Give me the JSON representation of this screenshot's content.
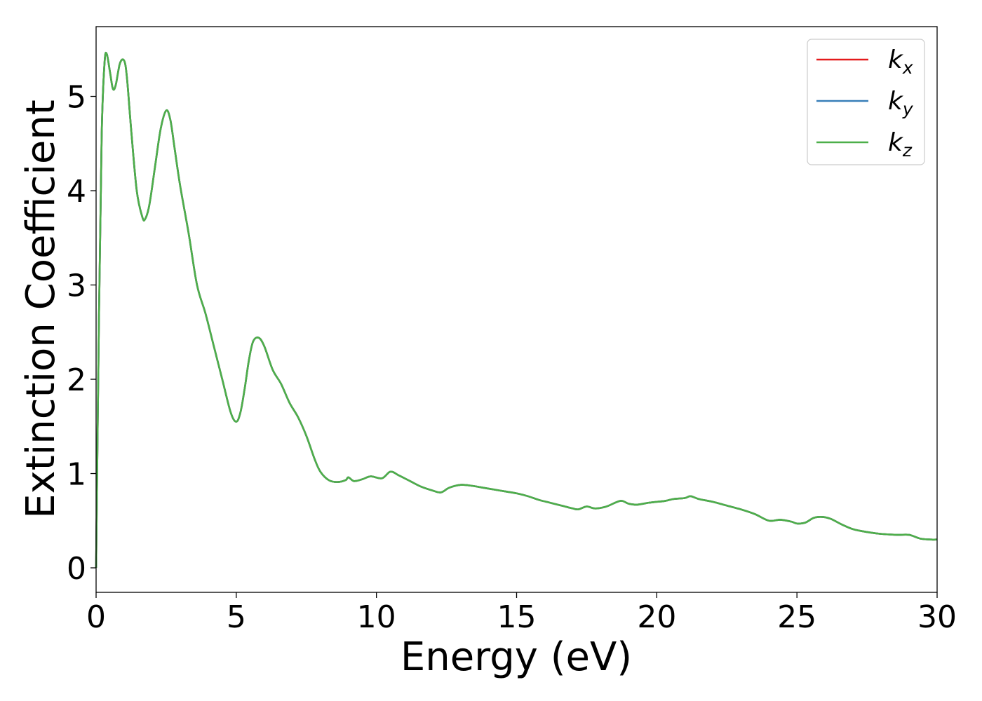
{
  "chart_data": {
    "type": "line",
    "xlabel": "Energy (eV)",
    "ylabel": "Extinction Coefficient",
    "xlim": [
      0,
      30
    ],
    "ylim": [
      -0.26,
      5.74
    ],
    "xticks": [
      0,
      5,
      10,
      15,
      20,
      25,
      30
    ],
    "yticks": [
      0,
      1,
      2,
      3,
      4,
      5
    ],
    "grid": false,
    "legend_position": "top-right",
    "x": [
      0.0,
      0.1,
      0.2,
      0.3,
      0.38,
      0.5,
      0.6,
      0.7,
      0.85,
      1.0,
      1.1,
      1.25,
      1.45,
      1.65,
      1.75,
      1.9,
      2.1,
      2.3,
      2.5,
      2.65,
      2.8,
      3.0,
      3.3,
      3.6,
      3.9,
      4.2,
      4.5,
      4.8,
      5.0,
      5.15,
      5.3,
      5.45,
      5.6,
      5.8,
      6.0,
      6.3,
      6.6,
      6.9,
      7.2,
      7.5,
      7.8,
      8.0,
      8.3,
      8.6,
      8.9,
      9.0,
      9.2,
      9.5,
      9.8,
      10.2,
      10.5,
      10.8,
      11.2,
      11.6,
      12.0,
      12.3,
      12.6,
      13.0,
      13.4,
      13.8,
      14.2,
      14.6,
      15.0,
      15.4,
      15.8,
      16.2,
      16.6,
      17.0,
      17.2,
      17.5,
      17.8,
      18.2,
      18.7,
      19.0,
      19.3,
      19.7,
      20.0,
      20.3,
      20.6,
      21.0,
      21.2,
      21.5,
      22.0,
      22.5,
      23.0,
      23.5,
      24.0,
      24.4,
      24.8,
      25.0,
      25.3,
      25.6,
      25.9,
      26.2,
      26.6,
      27.0,
      27.5,
      28.0,
      28.6,
      29.0,
      29.4,
      29.8,
      30.0
    ],
    "series": [
      {
        "name": "k_x",
        "label_main": "k",
        "label_sub": "x",
        "color": "#e41a1c",
        "values": [
          0.0,
          2.6,
          4.6,
          5.35,
          5.45,
          5.25,
          5.08,
          5.12,
          5.35,
          5.38,
          5.2,
          4.65,
          4.0,
          3.72,
          3.7,
          3.85,
          4.25,
          4.65,
          4.85,
          4.75,
          4.45,
          4.05,
          3.55,
          3.0,
          2.7,
          2.35,
          2.0,
          1.65,
          1.55,
          1.65,
          1.9,
          2.2,
          2.4,
          2.44,
          2.35,
          2.1,
          1.95,
          1.75,
          1.6,
          1.4,
          1.15,
          1.02,
          0.93,
          0.91,
          0.93,
          0.96,
          0.92,
          0.94,
          0.97,
          0.95,
          1.02,
          0.98,
          0.92,
          0.86,
          0.82,
          0.8,
          0.85,
          0.88,
          0.87,
          0.85,
          0.83,
          0.81,
          0.79,
          0.76,
          0.72,
          0.69,
          0.66,
          0.63,
          0.62,
          0.65,
          0.63,
          0.65,
          0.71,
          0.68,
          0.67,
          0.69,
          0.7,
          0.71,
          0.73,
          0.74,
          0.76,
          0.73,
          0.7,
          0.66,
          0.62,
          0.57,
          0.5,
          0.51,
          0.49,
          0.47,
          0.48,
          0.53,
          0.54,
          0.52,
          0.46,
          0.41,
          0.38,
          0.36,
          0.35,
          0.35,
          0.31,
          0.3,
          0.3
        ]
      },
      {
        "name": "k_y",
        "label_main": "k",
        "label_sub": "y",
        "color": "#377eb8",
        "values": [
          0.0,
          2.6,
          4.6,
          5.35,
          5.45,
          5.25,
          5.08,
          5.12,
          5.35,
          5.38,
          5.2,
          4.65,
          4.0,
          3.72,
          3.7,
          3.85,
          4.25,
          4.65,
          4.85,
          4.75,
          4.45,
          4.05,
          3.55,
          3.0,
          2.7,
          2.35,
          2.0,
          1.65,
          1.55,
          1.65,
          1.9,
          2.2,
          2.4,
          2.44,
          2.35,
          2.1,
          1.95,
          1.75,
          1.6,
          1.4,
          1.15,
          1.02,
          0.93,
          0.91,
          0.93,
          0.96,
          0.92,
          0.94,
          0.97,
          0.95,
          1.02,
          0.98,
          0.92,
          0.86,
          0.82,
          0.8,
          0.85,
          0.88,
          0.87,
          0.85,
          0.83,
          0.81,
          0.79,
          0.76,
          0.72,
          0.69,
          0.66,
          0.63,
          0.62,
          0.65,
          0.63,
          0.65,
          0.71,
          0.68,
          0.67,
          0.69,
          0.7,
          0.71,
          0.73,
          0.74,
          0.76,
          0.73,
          0.7,
          0.66,
          0.62,
          0.57,
          0.5,
          0.51,
          0.49,
          0.47,
          0.48,
          0.53,
          0.54,
          0.52,
          0.46,
          0.41,
          0.38,
          0.36,
          0.35,
          0.35,
          0.31,
          0.3,
          0.3
        ]
      },
      {
        "name": "k_z",
        "label_main": "k",
        "label_sub": "z",
        "color": "#4daf4a",
        "values": [
          0.0,
          2.6,
          4.6,
          5.35,
          5.45,
          5.25,
          5.08,
          5.12,
          5.35,
          5.38,
          5.2,
          4.65,
          4.0,
          3.72,
          3.7,
          3.85,
          4.25,
          4.65,
          4.85,
          4.75,
          4.45,
          4.05,
          3.55,
          3.0,
          2.7,
          2.35,
          2.0,
          1.65,
          1.55,
          1.65,
          1.9,
          2.2,
          2.4,
          2.44,
          2.35,
          2.1,
          1.95,
          1.75,
          1.6,
          1.4,
          1.15,
          1.02,
          0.93,
          0.91,
          0.93,
          0.96,
          0.92,
          0.94,
          0.97,
          0.95,
          1.02,
          0.98,
          0.92,
          0.86,
          0.82,
          0.8,
          0.85,
          0.88,
          0.87,
          0.85,
          0.83,
          0.81,
          0.79,
          0.76,
          0.72,
          0.69,
          0.66,
          0.63,
          0.62,
          0.65,
          0.63,
          0.65,
          0.71,
          0.68,
          0.67,
          0.69,
          0.7,
          0.71,
          0.73,
          0.74,
          0.76,
          0.73,
          0.7,
          0.66,
          0.62,
          0.57,
          0.5,
          0.51,
          0.49,
          0.47,
          0.48,
          0.53,
          0.54,
          0.52,
          0.46,
          0.41,
          0.38,
          0.36,
          0.35,
          0.35,
          0.31,
          0.3,
          0.3
        ]
      }
    ]
  }
}
